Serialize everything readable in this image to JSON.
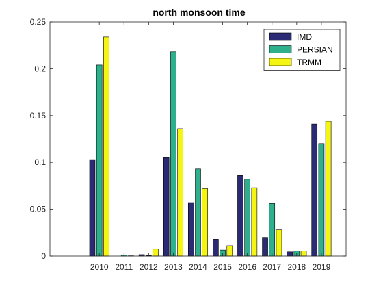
{
  "chart_data": {
    "type": "bar",
    "title": "north monsoon time",
    "xlabel": "",
    "ylabel": "",
    "categories": [
      "2010",
      "2011",
      "2012",
      "2013",
      "2014",
      "2015",
      "2016",
      "2017",
      "2018",
      "2019"
    ],
    "x_range_categories_before": 1,
    "ylim": [
      0,
      0.25
    ],
    "yticks": [
      "0",
      "0.05",
      "0.1",
      "0.15",
      "0.2",
      "0.25"
    ],
    "ytick_values": [
      0,
      0.05,
      0.1,
      0.15,
      0.2,
      0.25
    ],
    "grid": false,
    "legend_position": "top-right",
    "series": [
      {
        "name": "IMD",
        "color": "#2b2a74",
        "values": [
          0.103,
          0.0,
          0.0015,
          0.105,
          0.057,
          0.018,
          0.086,
          0.02,
          0.0045,
          0.141
        ]
      },
      {
        "name": "PERSIAN",
        "color": "#2eb08c",
        "values": [
          0.204,
          0.001,
          0.0005,
          0.218,
          0.093,
          0.0065,
          0.082,
          0.056,
          0.0055,
          0.12
        ]
      },
      {
        "name": "TRMM",
        "color": "#f5f514",
        "values": [
          0.234,
          0.0003,
          0.0075,
          0.136,
          0.072,
          0.011,
          0.073,
          0.028,
          0.0055,
          0.144
        ]
      }
    ]
  }
}
